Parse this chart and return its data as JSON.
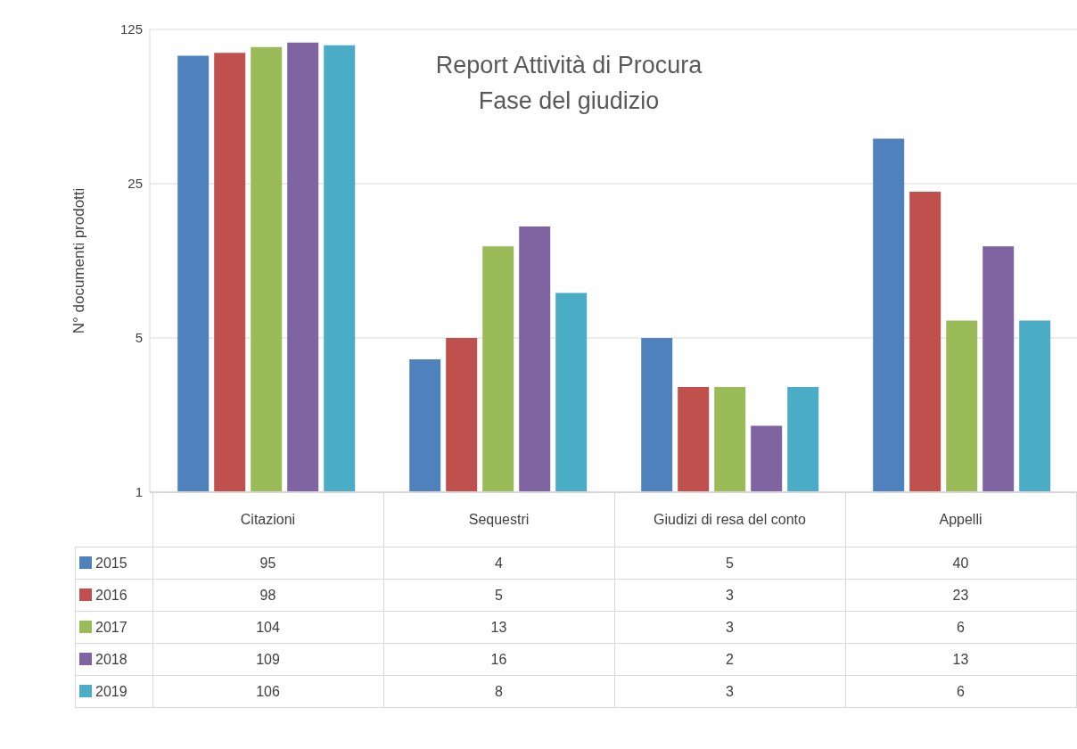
{
  "chart_data": {
    "type": "bar",
    "title": "Report Attività di Procura",
    "subtitle": "Fase del giudizio",
    "ylabel": "N° documenti prodotti",
    "categories": [
      "Citazioni",
      "Sequestri",
      "Giudizi di resa del conto",
      "Appelli"
    ],
    "series": [
      {
        "name": "2015",
        "color": "#4f81bd",
        "values": [
          95,
          4,
          5,
          40
        ]
      },
      {
        "name": "2016",
        "color": "#c0504d",
        "values": [
          98,
          5,
          3,
          23
        ]
      },
      {
        "name": "2017",
        "color": "#9bbb59",
        "values": [
          104,
          13,
          3,
          6
        ]
      },
      {
        "name": "2018",
        "color": "#8064a2",
        "values": [
          109,
          16,
          2,
          13
        ]
      },
      {
        "name": "2019",
        "color": "#4bacc6",
        "values": [
          106,
          8,
          3,
          6
        ]
      }
    ],
    "log": true,
    "ylim": [
      1,
      125
    ],
    "yticks": [
      1,
      5,
      25,
      125
    ],
    "grid": "y",
    "legend": "bottom",
    "data_labels": true
  }
}
